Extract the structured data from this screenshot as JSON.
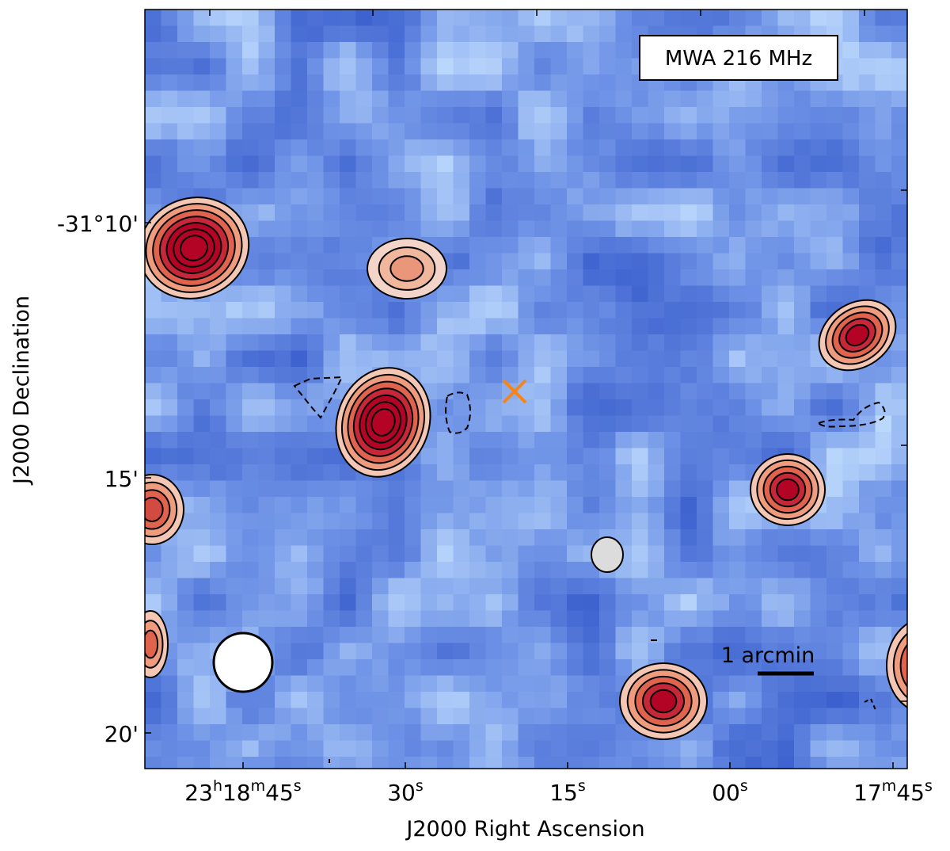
{
  "panel_label": "MWA 216 MHz",
  "x_axis": {
    "label": "J2000 Right Ascension",
    "ticks": [
      {
        "main": "23",
        "sup1": "h",
        "mid": "18",
        "sup2": "m",
        "end": "45",
        "sup3": "s"
      },
      {
        "main": "30",
        "sup3": "s"
      },
      {
        "main": "15",
        "sup3": "s"
      },
      {
        "main": "00",
        "sup3": "s"
      },
      {
        "mid": "17",
        "sup2": "m",
        "end": "45",
        "sup3": "s"
      }
    ]
  },
  "y_axis": {
    "label": "J2000 Declination",
    "ticks": [
      "-31°10'",
      "15'",
      "20'"
    ]
  },
  "scale_bar": {
    "label": "1 arcmin"
  },
  "colors": {
    "background": "#6f93e6",
    "low": "#3a5fcd",
    "high": "#c4e0ff",
    "source_core": "#b40426",
    "source_mid": "#e8775e",
    "source_edge": "#f5c4ad",
    "marker": "#f58518",
    "contour": "#000000",
    "beam": "#ffffff"
  },
  "markers": [
    {
      "name": "target-position",
      "symbol": "x"
    }
  ],
  "beam": {
    "shape": "circle"
  }
}
